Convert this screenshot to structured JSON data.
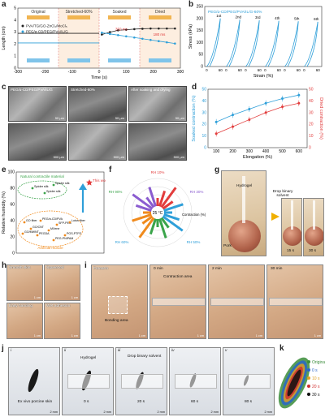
{
  "panels": {
    "a": "a",
    "b": "b",
    "c": "c",
    "d": "d",
    "e": "e",
    "f": "f",
    "g": "g",
    "h": "h",
    "i": "i",
    "j": "j",
    "k": "k"
  },
  "panel_a": {
    "stages": [
      "Original",
      "Stretched-60%",
      "Soaked",
      "Dried"
    ],
    "legend": [
      "PVA/TG/GO-ZnCl₂/MoCl₅",
      "PEG/α-CD/PEG/PVA/IL/G"
    ],
    "annot_top": "350 ms",
    "annot_bottom": "180 ms",
    "chart_data": {
      "type": "line",
      "xlabel": "Time (s)",
      "ylabel": "Length (cm)",
      "xlim": [
        -300,
        300
      ],
      "ylim": [
        0,
        5
      ],
      "xticks": [
        "-300",
        "-200",
        "-100",
        "0",
        "100",
        "200",
        "300"
      ],
      "yticks": [
        "0",
        "1",
        "2",
        "3",
        "4",
        "5"
      ],
      "series": [
        {
          "name": "PVA/TG/GO-ZnCl₂/MoCl₅",
          "color": "#222222",
          "x": [
            10,
            40,
            70,
            100,
            130,
            160,
            190,
            220,
            250,
            280
          ],
          "y": [
            2.8,
            3.0,
            3.15,
            3.2,
            3.25,
            3.28,
            3.3,
            3.3,
            3.3,
            3.3
          ]
        },
        {
          "name": "PEG/α-CD/PEG/PVA/IL/G",
          "color": "#2e9fd9",
          "x": [
            10,
            40,
            70,
            100,
            130,
            160,
            190,
            220,
            250,
            280
          ],
          "y": [
            2.95,
            2.85,
            2.75,
            2.65,
            2.55,
            2.45,
            2.35,
            2.25,
            2.15,
            2.05
          ]
        }
      ]
    }
  },
  "panel_b": {
    "legend": "PEG/α-CD/PEG/PVA/IL/G-60%",
    "cycle_labels": [
      "1st",
      "2nd",
      "3rd",
      "4th",
      "5th",
      "6th"
    ],
    "chart_data": {
      "type": "line",
      "xlabel": "Strain (%)",
      "ylabel": "Stress (kPa)",
      "ylim": [
        0,
        250
      ],
      "yticks": [
        "0",
        "50",
        "100",
        "150",
        "200",
        "250"
      ],
      "xticks": [
        "0",
        "60",
        "0",
        "60",
        "0",
        "60",
        "0",
        "60",
        "0",
        "60",
        "0",
        "60"
      ],
      "series": [
        {
          "name": "1st",
          "peak": 200
        },
        {
          "name": "2nd",
          "peak": 195
        },
        {
          "name": "3rd",
          "peak": 192
        },
        {
          "name": "4th",
          "peak": 190
        },
        {
          "name": "5th",
          "peak": 188
        },
        {
          "name": "6th",
          "peak": 186
        }
      ]
    }
  },
  "panel_c": {
    "captions": [
      "PEG/α-CD/PEG/PVA/IL/G",
      "Stretched-60%",
      "After soaking and drying"
    ],
    "scale_top": "50 μm",
    "scale_bottom": "500 μm"
  },
  "panel_d": {
    "chart_data": {
      "type": "line",
      "xlabel": "Elongation (%)",
      "ylabel": "Soaked contraction (%)",
      "ylabel_right": "Dried contraction (%)",
      "x": [
        100,
        200,
        300,
        400,
        500,
        600
      ],
      "xticks": [
        "100",
        "200",
        "300",
        "400",
        "500",
        "600"
      ],
      "ylim": [
        0,
        50
      ],
      "yticks": [
        "0",
        "10",
        "20",
        "30",
        "40",
        "50"
      ],
      "ylim_right": [
        0,
        50
      ],
      "yticks_right": [
        "0",
        "10",
        "20",
        "30",
        "40",
        "50"
      ],
      "series": [
        {
          "name": "Soaked contraction",
          "color": "#2e9fd9",
          "values": [
            22,
            28,
            33,
            38,
            42,
            45
          ]
        },
        {
          "name": "Dried contraction",
          "color": "#e23c3c",
          "values": [
            12,
            18,
            24,
            30,
            35,
            38
          ]
        }
      ]
    }
  },
  "panel_e": {
    "natural_title": "Natural contractile material",
    "natural_items": [
      "Spider silk",
      "Spider silk",
      "Spider silk"
    ],
    "artificial_title": "Artificial muscle",
    "this_work": "This work",
    "artificial_items": [
      "GO fiber",
      "GO/CNT",
      "PEG/α-CD/PVA",
      "PEGDA",
      "MXene",
      "SFP-PEG",
      "PGS-PTFE",
      "GO/MWNT",
      "PEG-PNIPAM",
      "Lotus fiber"
    ],
    "chart_data": {
      "type": "scatter",
      "ylabel": "Relative humidity (%)",
      "ylim": [
        0,
        100
      ],
      "yticks": [
        "0",
        "20",
        "40",
        "60",
        "80",
        "100"
      ]
    }
  },
  "panel_f": {
    "labels": [
      "RH 10%",
      "RH 30%",
      "RH 50%",
      "RH 60%",
      "RH 90%"
    ],
    "center": "25 °C",
    "axis_label": "Contraction (%)"
  },
  "panel_g": {
    "hydrogel": "Hydrogel",
    "drop": "Drop binary solvent",
    "pork": "Pork",
    "times": [
      "15 s",
      "30 s"
    ]
  },
  "panel_h": {
    "captions": [
      "Smooth skin",
      "Squeezed",
      "Easy handing",
      "Wet adhesion"
    ],
    "scale": "1 cm"
  },
  "panel_i": {
    "forearm": "Forearm",
    "bonding": "Bonding area",
    "contraction": "Contraction area",
    "times": [
      "0 min",
      "2 min",
      "30 min"
    ],
    "scale": "1 cm"
  },
  "panel_j": {
    "roman": [
      "i",
      "ii",
      "iii",
      "iv",
      "v"
    ],
    "labels": [
      "Ex vivo porcine skin",
      "Hydrogel",
      "Drop binary solvent"
    ],
    "times": [
      "0 s",
      "20 s",
      "60 s",
      "80 s"
    ],
    "scale": "2 mm"
  },
  "panel_k": {
    "legend": [
      {
        "label": "Original",
        "color": "#3a8c3a"
      },
      {
        "label": "0 s",
        "color": "#2a66c8"
      },
      {
        "label": "10 s",
        "color": "#e0a020"
      },
      {
        "label": "20 s",
        "color": "#d03030"
      },
      {
        "label": "30 s",
        "color": "#111111"
      }
    ]
  }
}
